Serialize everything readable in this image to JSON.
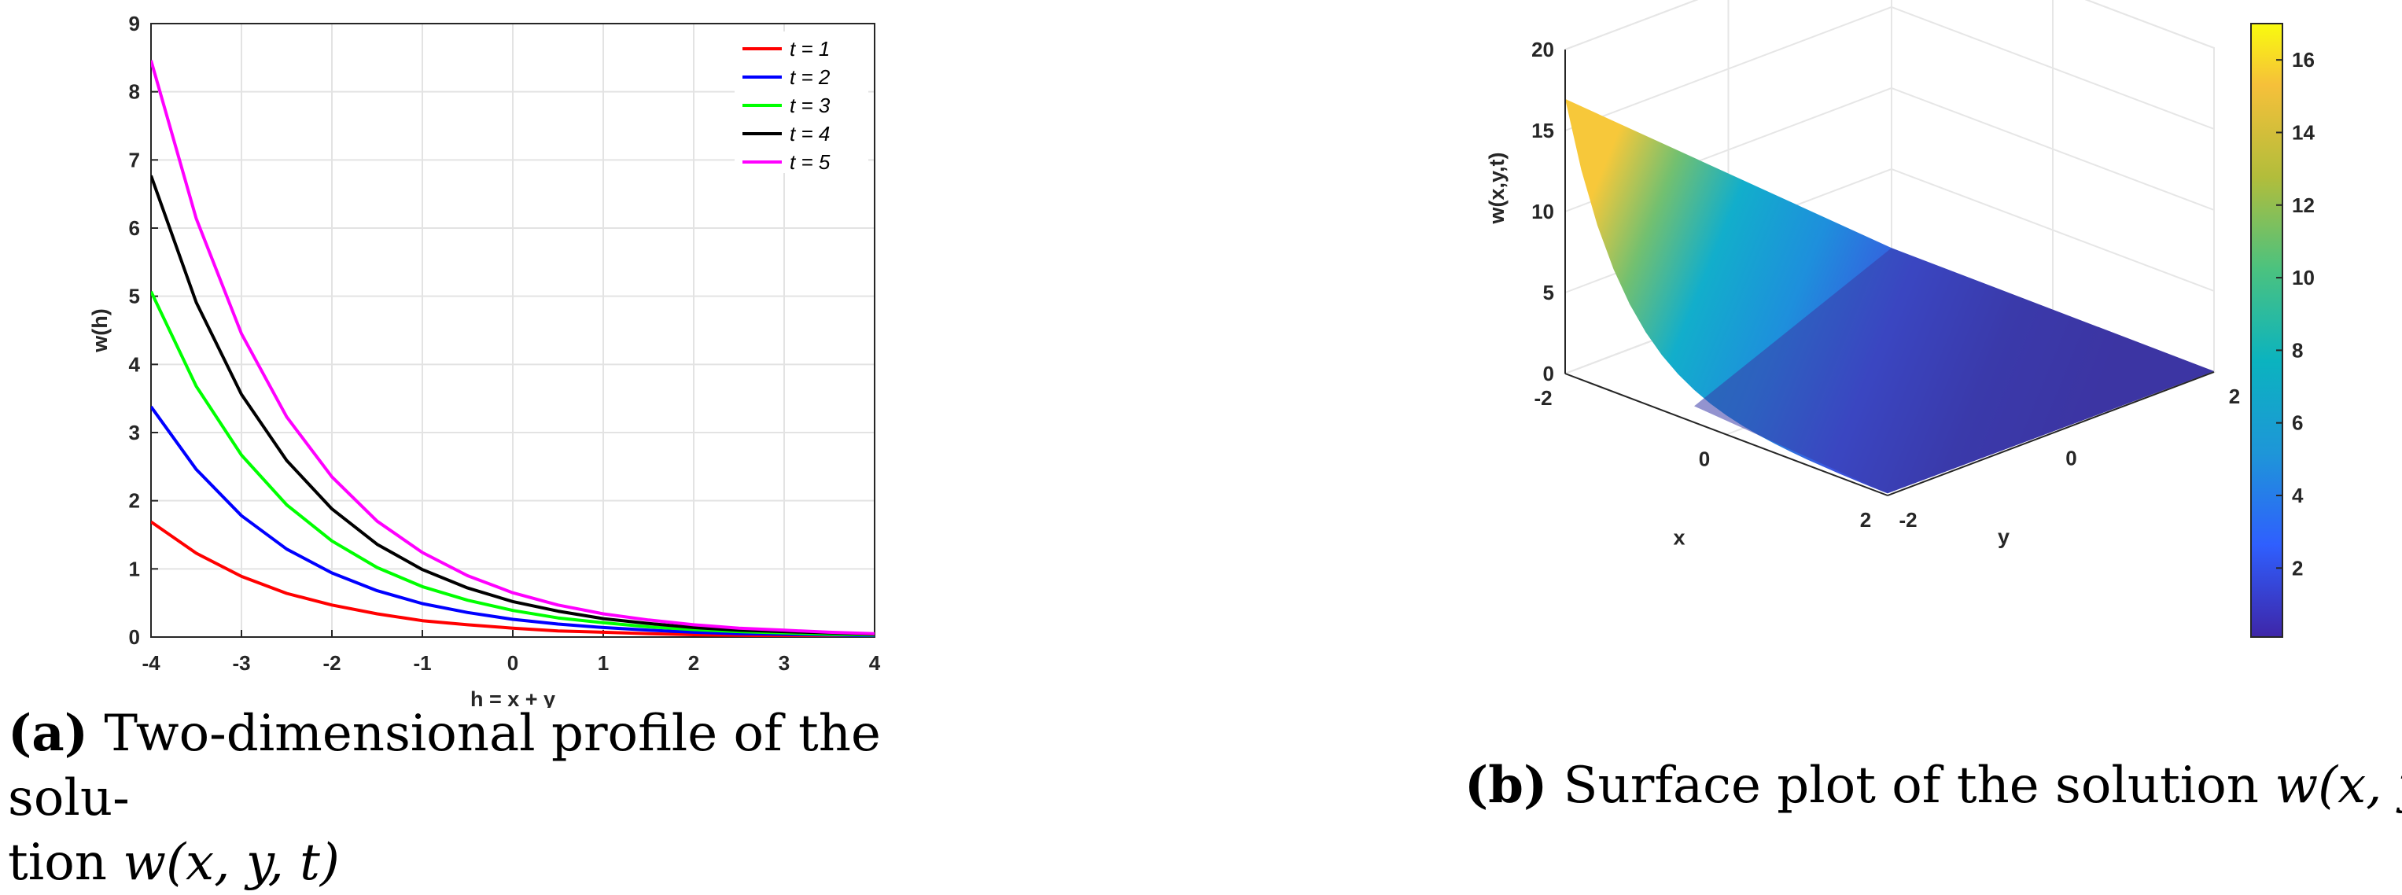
{
  "chart_data": [
    {
      "type": "line",
      "panel": "a",
      "xlabel": "h = x + y",
      "ylabel": "w(h)",
      "xlim": [
        -4,
        4
      ],
      "ylim": [
        0,
        9
      ],
      "xticks": [
        "-4",
        "-3",
        "-2",
        "-1",
        "0",
        "1",
        "2",
        "3",
        "4"
      ],
      "yticks": [
        "0",
        "1",
        "2",
        "3",
        "4",
        "5",
        "6",
        "7",
        "8",
        "9"
      ],
      "grid": true,
      "legend_position": "top-right",
      "x": [
        -4,
        -3.5,
        -3,
        -2.5,
        -2,
        -1.5,
        -1,
        -0.5,
        0,
        0.5,
        1,
        1.5,
        2,
        2.5,
        3,
        3.5,
        4
      ],
      "series": [
        {
          "name": "t = 1",
          "color": "#ff0000",
          "values": [
            1.69,
            1.23,
            0.89,
            0.64,
            0.47,
            0.34,
            0.24,
            0.18,
            0.13,
            0.09,
            0.07,
            0.05,
            0.035,
            0.025,
            0.02,
            0.015,
            0.01
          ]
        },
        {
          "name": "t = 2",
          "color": "#0000ff",
          "values": [
            3.38,
            2.46,
            1.78,
            1.29,
            0.94,
            0.68,
            0.49,
            0.36,
            0.26,
            0.19,
            0.14,
            0.1,
            0.07,
            0.05,
            0.04,
            0.03,
            0.02
          ]
        },
        {
          "name": "t = 3",
          "color": "#00ff00",
          "values": [
            5.07,
            3.68,
            2.67,
            1.94,
            1.41,
            1.02,
            0.74,
            0.54,
            0.39,
            0.28,
            0.21,
            0.15,
            0.11,
            0.08,
            0.06,
            0.04,
            0.03
          ]
        },
        {
          "name": "t = 4",
          "color": "#000000",
          "values": [
            6.77,
            4.91,
            3.56,
            2.59,
            1.88,
            1.36,
            0.99,
            0.72,
            0.52,
            0.38,
            0.27,
            0.2,
            0.14,
            0.1,
            0.08,
            0.06,
            0.04
          ]
        },
        {
          "name": "t = 5",
          "color": "#ff00ff",
          "values": [
            8.46,
            6.14,
            4.45,
            3.23,
            2.35,
            1.7,
            1.24,
            0.9,
            0.65,
            0.47,
            0.34,
            0.25,
            0.18,
            0.13,
            0.1,
            0.07,
            0.05
          ]
        }
      ]
    },
    {
      "type": "surface",
      "panel": "b",
      "xlabel": "x",
      "ylabel": "y",
      "zlabel": "w(x,y,t)",
      "xlim": [
        -2,
        2
      ],
      "ylim": [
        -2,
        2
      ],
      "zlim": [
        0,
        20
      ],
      "xticks": [
        "-2",
        "0",
        "2"
      ],
      "yticks": [
        "-2",
        "0",
        "2"
      ],
      "zticks": [
        "0",
        "5",
        "10",
        "15",
        "20"
      ],
      "colorbar_ticks": [
        "2",
        "4",
        "6",
        "8",
        "10",
        "12",
        "14",
        "16"
      ],
      "colorbar_range": [
        0.1,
        17
      ],
      "colormap": "parula",
      "corner_values": {
        "x_-2_y_-2": 16.9,
        "x_-2_y_2": 0.13,
        "x_2_y_-2": 0.13,
        "x_2_y_2": 0.05
      }
    }
  ],
  "captions": {
    "a": {
      "label": "(a)",
      "text_line1": "Two-dimensional profile of the solu-",
      "text_line2": "tion",
      "math": "w(x, y, t)"
    },
    "b": {
      "label": "(b)",
      "text": "Surface plot of the solution",
      "math": "w(x, y, t)"
    }
  }
}
